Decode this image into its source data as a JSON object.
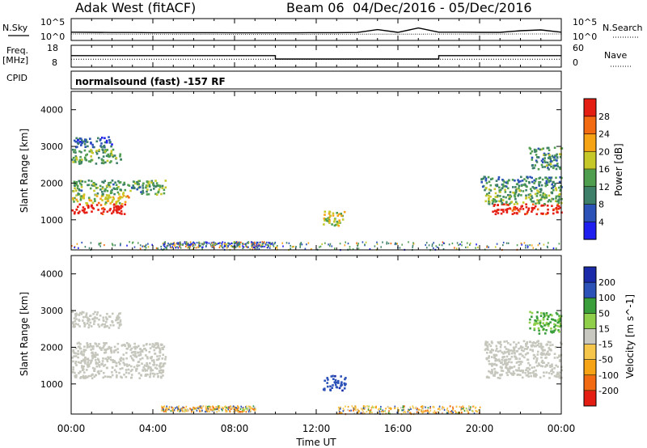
{
  "header": {
    "station": "Adak West (fitACF)",
    "beam": "Beam 06",
    "date_range": "04/Dec/2016 - 05/Dec/2016"
  },
  "side_labels": {
    "nsky": "N.Sky",
    "nsearch": "N.Search",
    "freq": "Freq.",
    "freq_unit": "[MHz]",
    "nave": "Nave",
    "cpid": "CPID"
  },
  "cpid_text": "normalsound (fast) -157 RF",
  "noise_panel": {
    "left_ticks": [
      "10^5",
      "10^0"
    ],
    "right_ticks": [
      "10^5",
      "10^0"
    ]
  },
  "freq_panel": {
    "left_ticks": [
      "18",
      "8"
    ],
    "right_ticks": [
      "60",
      "0"
    ]
  },
  "colors": {
    "power_scale": [
      "#1f1ff0",
      "#2c52b8",
      "#3d7f68",
      "#4f9e50",
      "#c6c82a",
      "#f6a316",
      "#f26a12",
      "#e51e14"
    ],
    "velocity_scale": [
      "#e51e14",
      "#f26a12",
      "#f6a316",
      "#f5c64a",
      "#c9c8c0",
      "#8fcf4a",
      "#3a9e3a",
      "#2c52b8",
      "#1a2aa8"
    ],
    "ground_scatter": "#c6c6bd"
  },
  "chart_data": [
    {
      "type": "line",
      "title": "",
      "ylabel_left": "N.Sky",
      "ylabel_right": "N.Search",
      "y_scale": "log",
      "ylim": [
        1,
        100000
      ],
      "x": [
        "00:00",
        "01:00",
        "02:00",
        "03:00",
        "04:00",
        "05:00",
        "06:00",
        "07:00",
        "08:00",
        "09:00",
        "10:00",
        "11:00",
        "12:00",
        "13:00",
        "14:00",
        "15:00",
        "16:00",
        "17:00",
        "18:00",
        "19:00",
        "20:00",
        "21:00",
        "22:00",
        "23:00",
        "24:00"
      ],
      "series": [
        {
          "name": "N.Sky",
          "values": [
            60,
            55,
            50,
            50,
            45,
            45,
            45,
            45,
            40,
            40,
            40,
            40,
            45,
            45,
            50,
            300,
            55,
            800,
            60,
            60,
            55,
            55,
            150,
            250,
            60
          ]
        },
        {
          "name": "N.Search",
          "values": [
            20,
            20,
            18,
            18,
            18,
            17,
            17,
            17,
            16,
            16,
            16,
            16,
            17,
            17,
            18,
            18,
            18,
            18,
            19,
            19,
            19,
            19,
            20,
            20,
            20
          ]
        }
      ]
    },
    {
      "type": "line",
      "ylabel_left": "Freq. [MHz]",
      "ylabel_right": "Nave",
      "ylim_left": [
        8,
        18
      ],
      "ylim_right": [
        0,
        60
      ],
      "series": [
        {
          "name": "Freq.",
          "x": [
            "00:00",
            "10:00",
            "10:00",
            "18:00",
            "18:00",
            "24:00"
          ],
          "values": [
            13.3,
            13.3,
            11.5,
            11.5,
            13.3,
            13.3
          ]
        },
        {
          "name": "Nave",
          "x": [
            "00:00",
            "24:00"
          ],
          "values": [
            20,
            20
          ]
        }
      ]
    },
    {
      "type": "heatmap",
      "title": "",
      "xlabel": "",
      "ylabel": "Slant Range [km]",
      "ylim": [
        180,
        4500
      ],
      "yticks": [
        "1000",
        "2000",
        "3000",
        "4000"
      ],
      "colorbar": {
        "label": "Power [dB]",
        "ticks": [
          "4",
          "8",
          "12",
          "16",
          "20",
          "24",
          "28"
        ],
        "range": [
          0,
          30
        ]
      },
      "regions": [
        {
          "t0": 0.0,
          "t1": 2.6,
          "r0": 1180,
          "r1": 1450,
          "value": 30
        },
        {
          "t0": 0.0,
          "t1": 2.8,
          "r0": 1450,
          "r1": 1700,
          "value": 18
        },
        {
          "t0": 0.0,
          "t1": 4.6,
          "r0": 1700,
          "r1": 2100,
          "value": 12
        },
        {
          "t0": 0.0,
          "t1": 2.4,
          "r0": 2550,
          "r1": 2950,
          "value": 13
        },
        {
          "t0": 0.0,
          "t1": 2.0,
          "r0": 3000,
          "r1": 3300,
          "value": 6
        },
        {
          "t0": 12.3,
          "t1": 13.4,
          "r0": 850,
          "r1": 1250,
          "value": 16
        },
        {
          "t0": 20.6,
          "t1": 24.0,
          "r0": 1180,
          "r1": 1450,
          "value": 30
        },
        {
          "t0": 20.2,
          "t1": 24.0,
          "r0": 1450,
          "r1": 1900,
          "value": 13
        },
        {
          "t0": 20.0,
          "t1": 24.0,
          "r0": 1900,
          "r1": 2200,
          "value": 10
        },
        {
          "t0": 22.4,
          "t1": 24.0,
          "r0": 2400,
          "r1": 3000,
          "value": 11
        },
        {
          "t0": 4.4,
          "t1": 10.0,
          "r0": 260,
          "r1": 420,
          "value": 4
        },
        {
          "t0": 0.0,
          "t1": 24.0,
          "r0": 200,
          "r1": 420,
          "value": 10
        }
      ]
    },
    {
      "type": "heatmap",
      "title": "",
      "xlabel": "Time UT",
      "ylabel": "Slant Range [km]",
      "ylim": [
        180,
        4500
      ],
      "yticks": [
        "1000",
        "2000",
        "3000",
        "4000"
      ],
      "xticks": [
        "00:00",
        "04:00",
        "08:00",
        "12:00",
        "16:00",
        "20:00",
        "00:00"
      ],
      "colorbar": {
        "label": "Velocity [m s^-1]",
        "ticks": [
          "200",
          "100",
          "50",
          "15",
          "-15",
          "-50",
          "-100",
          "-200"
        ],
        "range": [
          -250,
          250
        ]
      },
      "regions": [
        {
          "t0": 0.0,
          "t1": 4.6,
          "r0": 1180,
          "r1": 2150,
          "value": "ground scatter"
        },
        {
          "t0": 0.0,
          "t1": 2.4,
          "r0": 2550,
          "r1": 3000,
          "value": "ground scatter"
        },
        {
          "t0": 20.2,
          "t1": 24.0,
          "r0": 1180,
          "r1": 2200,
          "value": "ground scatter"
        },
        {
          "t0": 22.4,
          "t1": 24.0,
          "r0": 2400,
          "r1": 3000,
          "value": 60
        },
        {
          "t0": 12.3,
          "t1": 13.4,
          "r0": 850,
          "r1": 1250,
          "value": 180
        },
        {
          "t0": 4.4,
          "t1": 9.0,
          "r0": 260,
          "r1": 420,
          "value": -40
        },
        {
          "t0": 13.0,
          "t1": 20.0,
          "r0": 200,
          "r1": 420,
          "value": -40
        }
      ]
    }
  ]
}
